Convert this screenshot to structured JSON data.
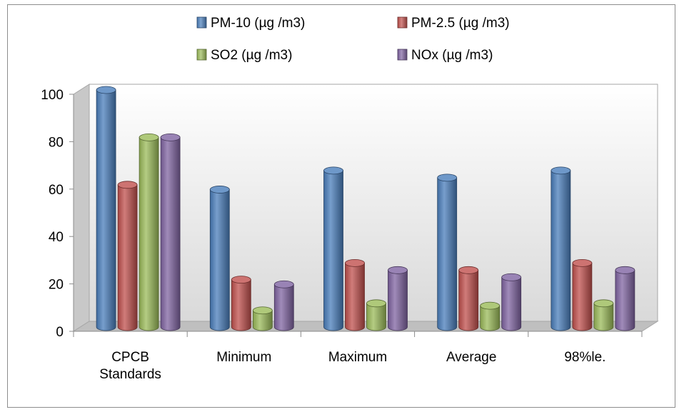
{
  "chart_data": {
    "type": "bar",
    "title": "",
    "xlabel": "",
    "ylabel": "",
    "ylim": [
      0,
      100
    ],
    "yticks": [
      0,
      20,
      40,
      60,
      80,
      100
    ],
    "grid": false,
    "legend_position": "top",
    "categories": [
      [
        "CPCB",
        "Standards"
      ],
      [
        "Minimum"
      ],
      [
        "Maximum"
      ],
      [
        "Average"
      ],
      [
        "98%le."
      ]
    ],
    "series": [
      {
        "name": "PM-10 (µg /m3)",
        "color": "#4a7ebb",
        "values": [
          100,
          58,
          66,
          63,
          66
        ]
      },
      {
        "name": "PM-2.5 (µg /m3)",
        "color": "#c0504d",
        "values": [
          60,
          20,
          27,
          24,
          27
        ]
      },
      {
        "name": "SO2 (µg /m3)",
        "color": "#9bbb59",
        "values": [
          80,
          7,
          10,
          9,
          10
        ]
      },
      {
        "name": "NOx (µg /m3)",
        "color": "#8064a2",
        "values": [
          80,
          18,
          24,
          21,
          24
        ]
      }
    ]
  }
}
